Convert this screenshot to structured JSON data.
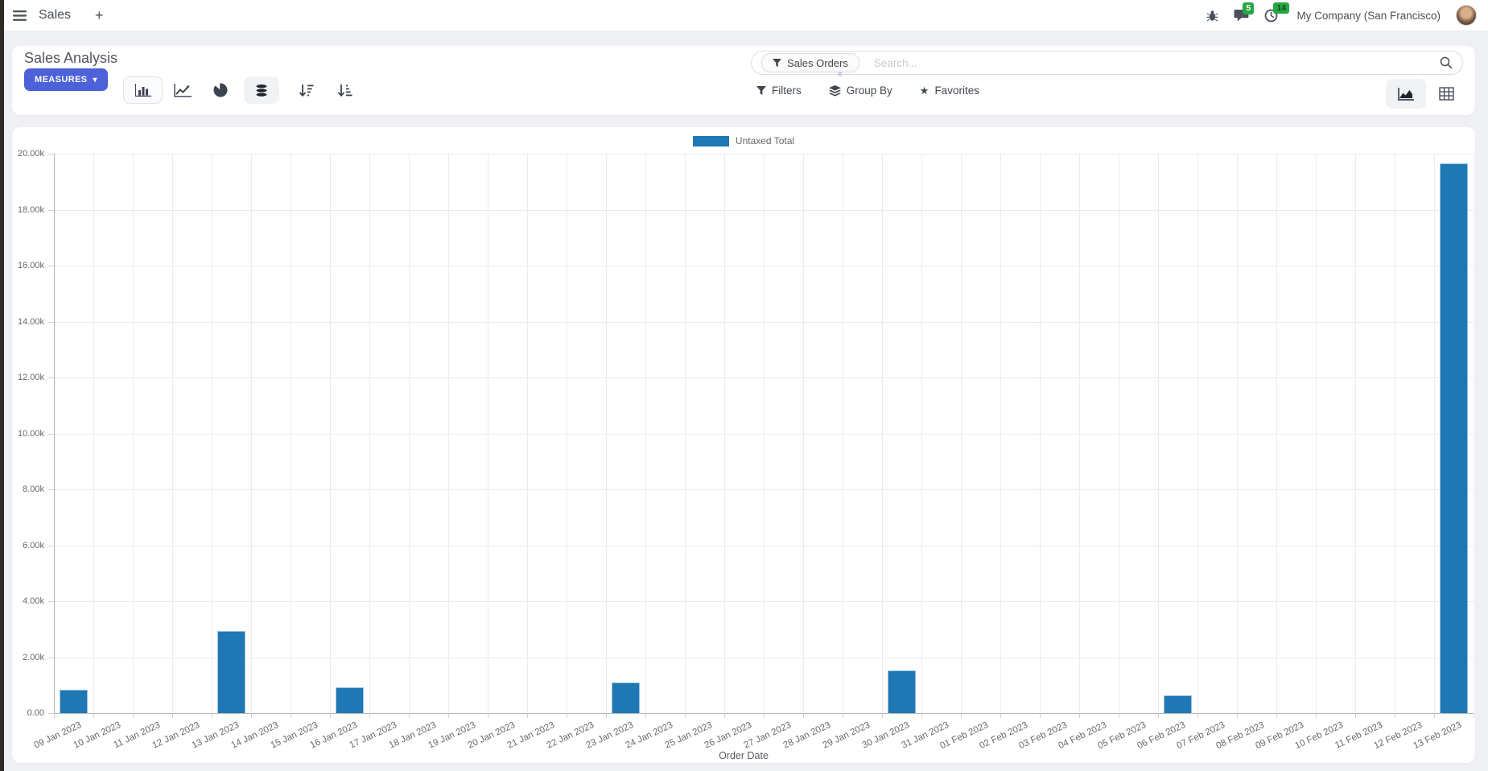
{
  "navbar": {
    "menu_label": "Sales",
    "messages_badge": "5",
    "activities_badge": "14",
    "company": "My Company (San Francisco)"
  },
  "control_panel": {
    "title": "Sales Analysis",
    "measures_label": "MEASURES",
    "search": {
      "facet_label": "Sales Orders",
      "placeholder": "Search..."
    },
    "filters_label": "Filters",
    "group_by_label": "Group By",
    "favorites_label": "Favorites"
  },
  "icons": {
    "plus": "+",
    "caret_down": "▾",
    "star": "★",
    "facet_close": "×"
  },
  "chart_data": {
    "type": "bar",
    "title": "",
    "legend": [
      "Untaxed Total"
    ],
    "legend_position": "top",
    "series_color": "#1f77b4",
    "grid": true,
    "xlabel": "Order Date",
    "ylabel": "",
    "ylim": [
      0,
      20000
    ],
    "ytick_step": 2000,
    "ytick_labels": [
      "20.00k",
      "18.00k",
      "16.00k",
      "14.00k",
      "12.00k",
      "10.00k",
      "8.00k",
      "6.00k",
      "4.00k",
      "2.00k",
      "0.00"
    ],
    "categories": [
      "09 Jan 2023",
      "10 Jan 2023",
      "11 Jan 2023",
      "12 Jan 2023",
      "13 Jan 2023",
      "14 Jan 2023",
      "15 Jan 2023",
      "16 Jan 2023",
      "17 Jan 2023",
      "18 Jan 2023",
      "19 Jan 2023",
      "20 Jan 2023",
      "21 Jan 2023",
      "22 Jan 2023",
      "23 Jan 2023",
      "24 Jan 2023",
      "25 Jan 2023",
      "26 Jan 2023",
      "27 Jan 2023",
      "28 Jan 2023",
      "29 Jan 2023",
      "30 Jan 2023",
      "31 Jan 2023",
      "01 Feb 2023",
      "02 Feb 2023",
      "03 Feb 2023",
      "04 Feb 2023",
      "05 Feb 2023",
      "06 Feb 2023",
      "07 Feb 2023",
      "08 Feb 2023",
      "09 Feb 2023",
      "10 Feb 2023",
      "11 Feb 2023",
      "12 Feb 2023",
      "13 Feb 2023"
    ],
    "values": [
      830,
      0,
      0,
      0,
      2930,
      0,
      0,
      920,
      0,
      0,
      0,
      0,
      0,
      0,
      1090,
      0,
      0,
      0,
      0,
      0,
      0,
      1520,
      0,
      0,
      0,
      0,
      0,
      0,
      630,
      0,
      0,
      0,
      0,
      0,
      0,
      19650
    ]
  }
}
